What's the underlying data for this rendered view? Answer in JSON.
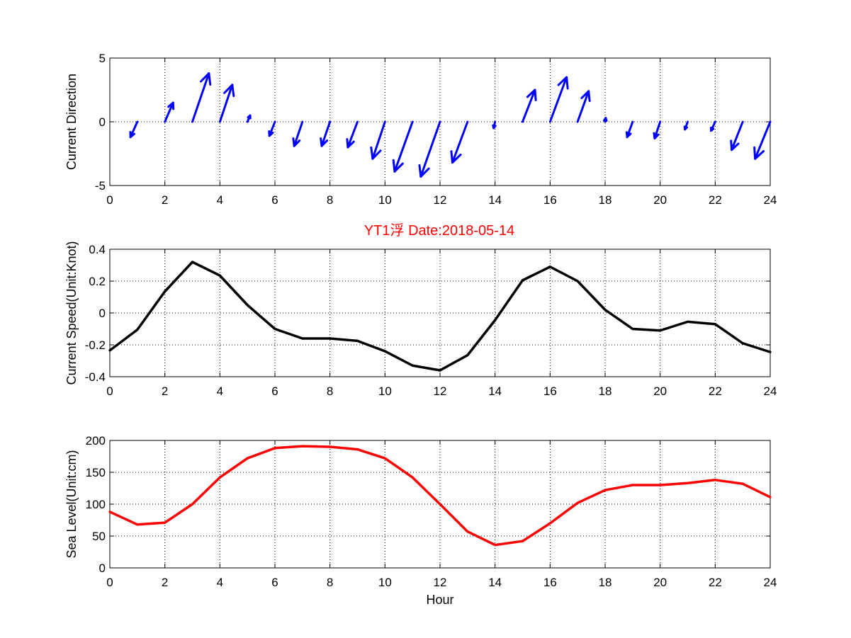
{
  "figure_title": "YT1浮    Date:2018-05-14",
  "colors": {
    "arrows": "#0000ff",
    "speed_line": "#000000",
    "level_line": "#ff0000",
    "title": "#ff0000"
  },
  "chart_data": [
    {
      "type": "quiver",
      "ylabel": "Current Direction",
      "xlabel": "",
      "xlim": [
        0,
        24
      ],
      "ylim": [
        -5,
        5
      ],
      "xticks": [
        0,
        2,
        4,
        6,
        8,
        10,
        12,
        14,
        16,
        18,
        20,
        22,
        24
      ],
      "yticks": [
        -5,
        0,
        5
      ],
      "grid": true,
      "arrows": [
        {
          "x": 1,
          "u": -0.25,
          "v": -1.2
        },
        {
          "x": 2,
          "u": 0.3,
          "v": 1.5
        },
        {
          "x": 3,
          "u": 0.6,
          "v": 3.8
        },
        {
          "x": 4,
          "u": 0.45,
          "v": 2.9
        },
        {
          "x": 5,
          "u": 0.1,
          "v": 0.5
        },
        {
          "x": 6,
          "u": -0.2,
          "v": -1.1
        },
        {
          "x": 7,
          "u": -0.3,
          "v": -1.9
        },
        {
          "x": 8,
          "u": -0.3,
          "v": -1.9
        },
        {
          "x": 9,
          "u": -0.35,
          "v": -2.0
        },
        {
          "x": 10,
          "u": -0.45,
          "v": -2.9
        },
        {
          "x": 11,
          "u": -0.65,
          "v": -3.9
        },
        {
          "x": 12,
          "u": -0.7,
          "v": -4.3
        },
        {
          "x": 13,
          "u": -0.55,
          "v": -3.2
        },
        {
          "x": 14,
          "u": -0.05,
          "v": -0.5
        },
        {
          "x": 15,
          "u": 0.45,
          "v": 2.5
        },
        {
          "x": 16,
          "u": 0.6,
          "v": 3.5
        },
        {
          "x": 17,
          "u": 0.4,
          "v": 2.4
        },
        {
          "x": 18,
          "u": 0.02,
          "v": 0.3
        },
        {
          "x": 19,
          "u": -0.2,
          "v": -1.2
        },
        {
          "x": 20,
          "u": -0.2,
          "v": -1.3
        },
        {
          "x": 21,
          "u": -0.1,
          "v": -0.6
        },
        {
          "x": 22,
          "u": -0.15,
          "v": -0.7
        },
        {
          "x": 23,
          "u": -0.4,
          "v": -2.2
        },
        {
          "x": 24,
          "u": -0.55,
          "v": -2.9
        }
      ]
    },
    {
      "type": "line",
      "ylabel": "Current Speed(Unit:Knot)",
      "xlabel": "",
      "xlim": [
        0,
        24
      ],
      "ylim": [
        -0.4,
        0.4
      ],
      "xticks": [
        0,
        2,
        4,
        6,
        8,
        10,
        12,
        14,
        16,
        18,
        20,
        22,
        24
      ],
      "yticks": [
        -0.4,
        -0.2,
        0,
        0.2,
        0.4
      ],
      "ytick_labels": [
        "-0.4",
        "-0.2",
        "0",
        "0.2",
        "0.4"
      ],
      "grid": true,
      "series": [
        {
          "x": [
            0,
            1,
            2,
            3,
            4,
            5,
            6,
            7,
            8,
            9,
            10,
            11,
            12,
            13,
            14,
            15,
            16,
            17,
            18,
            19,
            20,
            21,
            22,
            23,
            24
          ],
          "values": [
            -0.235,
            -0.105,
            0.135,
            0.32,
            0.235,
            0.05,
            -0.1,
            -0.16,
            -0.16,
            -0.175,
            -0.24,
            -0.33,
            -0.36,
            -0.265,
            -0.045,
            0.205,
            0.29,
            0.2,
            0.02,
            -0.1,
            -0.11,
            -0.055,
            -0.07,
            -0.19,
            -0.245
          ]
        }
      ]
    },
    {
      "type": "line",
      "ylabel": "Sea Level(Unit:cm)",
      "xlabel": "Hour",
      "xlim": [
        0,
        24
      ],
      "ylim": [
        0,
        200
      ],
      "xticks": [
        0,
        2,
        4,
        6,
        8,
        10,
        12,
        14,
        16,
        18,
        20,
        22,
        24
      ],
      "yticks": [
        0,
        50,
        100,
        150,
        200
      ],
      "grid": true,
      "series": [
        {
          "x": [
            0,
            1,
            2,
            3,
            4,
            5,
            6,
            7,
            8,
            9,
            10,
            11,
            12,
            13,
            14,
            15,
            16,
            17,
            18,
            19,
            20,
            21,
            22,
            23,
            24
          ],
          "values": [
            88,
            68,
            71,
            100,
            142,
            172,
            188,
            191,
            190,
            186,
            172,
            142,
            100,
            57,
            36,
            42,
            70,
            102,
            122,
            130,
            130,
            133,
            138,
            132,
            111
          ]
        }
      ]
    }
  ]
}
